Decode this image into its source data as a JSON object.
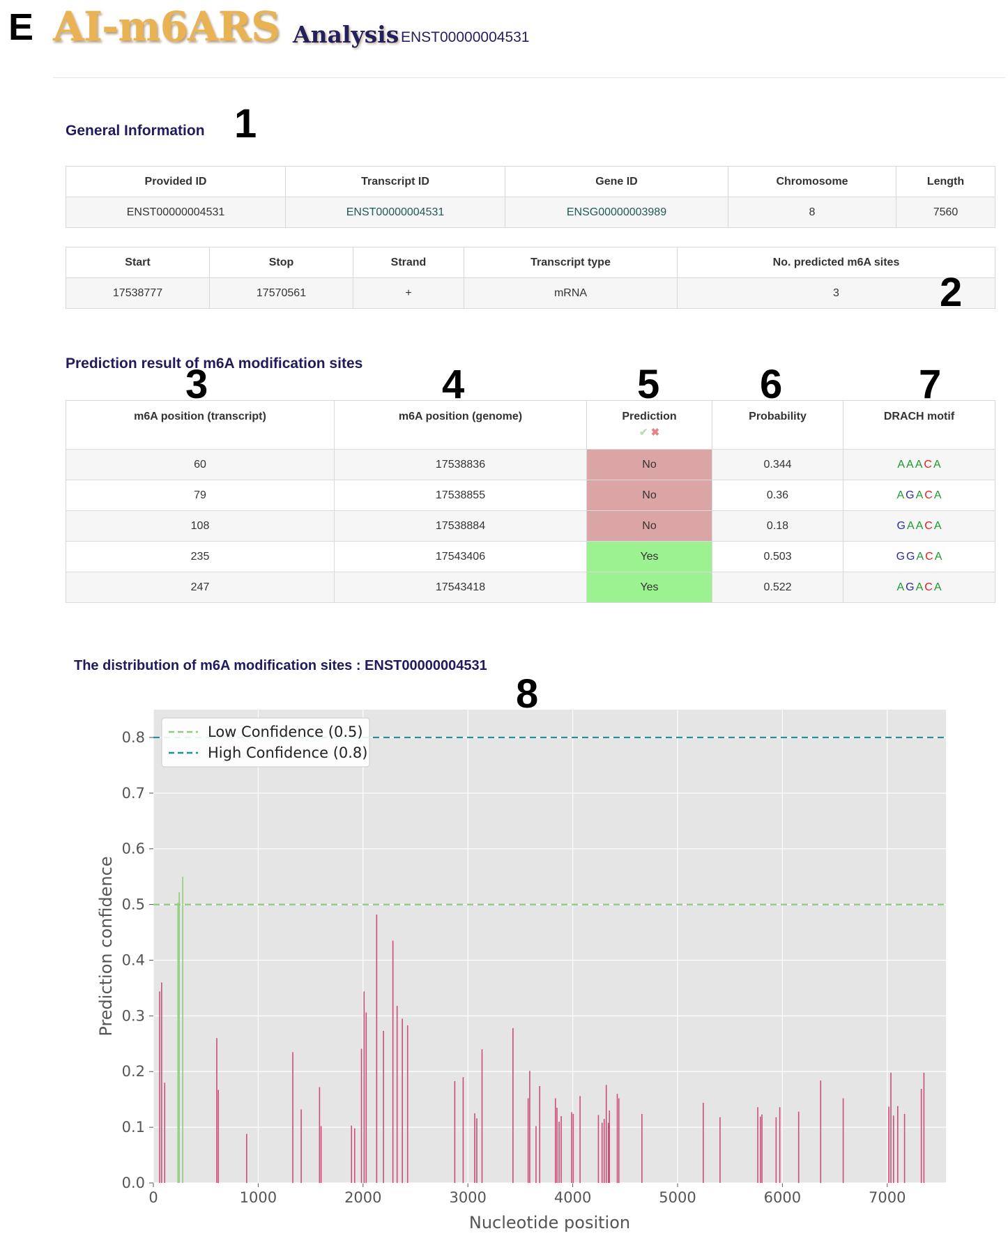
{
  "panel_letter": "E",
  "header": {
    "logo": "AI-m6ARS",
    "analysis": "Analysis",
    "separator": "-",
    "transcript": "ENST00000004531"
  },
  "numbers": {
    "n1": "1",
    "n2": "2",
    "n3": "3",
    "n4": "4",
    "n5": "5",
    "n6": "6",
    "n7": "7",
    "n8": "8"
  },
  "general": {
    "title": "General Information",
    "table1": {
      "headers": [
        "Provided ID",
        "Transcript ID",
        "Gene ID",
        "Chromosome",
        "Length"
      ],
      "row": [
        "ENST00000004531",
        "ENST00000004531",
        "ENSG00000003989",
        "8",
        "7560"
      ]
    },
    "table2": {
      "headers": [
        "Start",
        "Stop",
        "Strand",
        "Transcript type",
        "No. predicted m6A sites"
      ],
      "row": [
        "17538777",
        "17570561",
        "+",
        "mRNA",
        "3"
      ]
    }
  },
  "prediction": {
    "title": "Prediction result of m6A modification sites",
    "headers": [
      "m6A position (transcript)",
      "m6A position (genome)",
      "Prediction",
      "Probability",
      "DRACH motif"
    ],
    "legend_check": "✔",
    "legend_cross": "✖",
    "rows": [
      {
        "tpos": "60",
        "gpos": "17538836",
        "pred": "No",
        "prob": "0.344",
        "motif": [
          "A",
          "A",
          "A",
          "C",
          "A"
        ]
      },
      {
        "tpos": "79",
        "gpos": "17538855",
        "pred": "No",
        "prob": "0.36",
        "motif": [
          "A",
          "G",
          "A",
          "C",
          "A"
        ]
      },
      {
        "tpos": "108",
        "gpos": "17538884",
        "pred": "No",
        "prob": "0.18",
        "motif": [
          "G",
          "A",
          "A",
          "C",
          "A"
        ]
      },
      {
        "tpos": "235",
        "gpos": "17543406",
        "pred": "Yes",
        "prob": "0.503",
        "motif": [
          "G",
          "G",
          "A",
          "C",
          "A"
        ]
      },
      {
        "tpos": "247",
        "gpos": "17543418",
        "pred": "Yes",
        "prob": "0.522",
        "motif": [
          "A",
          "G",
          "A",
          "C",
          "A"
        ]
      }
    ],
    "motif_colors": {
      "A": "#1a9a2a",
      "G": "#2a2ab0",
      "C": "#e02020"
    }
  },
  "distribution": {
    "title": "The distribution of m6A modification sites : ENST00000004531"
  },
  "chart_data": {
    "type": "bar",
    "title": "The distribution of m6A modification sites : ENST00000004531",
    "xlabel": "Nucleotide position",
    "ylabel": "Prediction confidence",
    "xlim": [
      0,
      7560
    ],
    "ylim": [
      0,
      0.85
    ],
    "xticks": [
      "0",
      "1000",
      "2000",
      "3000",
      "4000",
      "5000",
      "6000",
      "7000"
    ],
    "yticks": [
      "0.0",
      "0.1",
      "0.2",
      "0.3",
      "0.4",
      "0.5",
      "0.6",
      "0.7",
      "0.8"
    ],
    "grid": true,
    "legend_position": "top-left",
    "colors": {
      "low_bar": "#cc4d77",
      "high_bar": "#8fcc7a",
      "low_line": "#8fcc7a",
      "high_line": "#1a9596",
      "background": "#e5e5e5"
    },
    "thresholds": [
      {
        "name": "Low Confidence (0.5)",
        "value": 0.5
      },
      {
        "name": "High Confidence (0.8)",
        "value": 0.8
      }
    ],
    "points": [
      [
        60,
        0.344
      ],
      [
        79,
        0.36
      ],
      [
        108,
        0.18
      ],
      [
        235,
        0.503
      ],
      [
        247,
        0.522
      ],
      [
        280,
        0.55
      ],
      [
        605,
        0.26
      ],
      [
        620,
        0.167
      ],
      [
        890,
        0.088
      ],
      [
        1330,
        0.235
      ],
      [
        1410,
        0.132
      ],
      [
        1585,
        0.172
      ],
      [
        1600,
        0.102
      ],
      [
        1890,
        0.103
      ],
      [
        1920,
        0.098
      ],
      [
        1985,
        0.241
      ],
      [
        2010,
        0.344
      ],
      [
        2030,
        0.306
      ],
      [
        2130,
        0.482
      ],
      [
        2195,
        0.273
      ],
      [
        2285,
        0.435
      ],
      [
        2325,
        0.318
      ],
      [
        2375,
        0.295
      ],
      [
        2425,
        0.283
      ],
      [
        2875,
        0.183
      ],
      [
        2955,
        0.19
      ],
      [
        3065,
        0.125
      ],
      [
        3085,
        0.116
      ],
      [
        3135,
        0.24
      ],
      [
        3430,
        0.278
      ],
      [
        3575,
        0.152
      ],
      [
        3590,
        0.201
      ],
      [
        3650,
        0.102
      ],
      [
        3685,
        0.174
      ],
      [
        3835,
        0.152
      ],
      [
        3850,
        0.135
      ],
      [
        3870,
        0.11
      ],
      [
        3890,
        0.12
      ],
      [
        3990,
        0.127
      ],
      [
        4005,
        0.124
      ],
      [
        4070,
        0.156
      ],
      [
        4245,
        0.122
      ],
      [
        4280,
        0.108
      ],
      [
        4300,
        0.115
      ],
      [
        4320,
        0.176
      ],
      [
        4340,
        0.108
      ],
      [
        4350,
        0.13
      ],
      [
        4425,
        0.16
      ],
      [
        4440,
        0.152
      ],
      [
        4660,
        0.124
      ],
      [
        5245,
        0.144
      ],
      [
        5405,
        0.118
      ],
      [
        5765,
        0.136
      ],
      [
        5790,
        0.119
      ],
      [
        5805,
        0.123
      ],
      [
        5940,
        0.118
      ],
      [
        5975,
        0.136
      ],
      [
        6155,
        0.128
      ],
      [
        6365,
        0.184
      ],
      [
        6580,
        0.152
      ],
      [
        7015,
        0.137
      ],
      [
        7035,
        0.198
      ],
      [
        7060,
        0.121
      ],
      [
        7100,
        0.138
      ],
      [
        7165,
        0.124
      ],
      [
        7325,
        0.169
      ],
      [
        7350,
        0.198
      ]
    ]
  }
}
